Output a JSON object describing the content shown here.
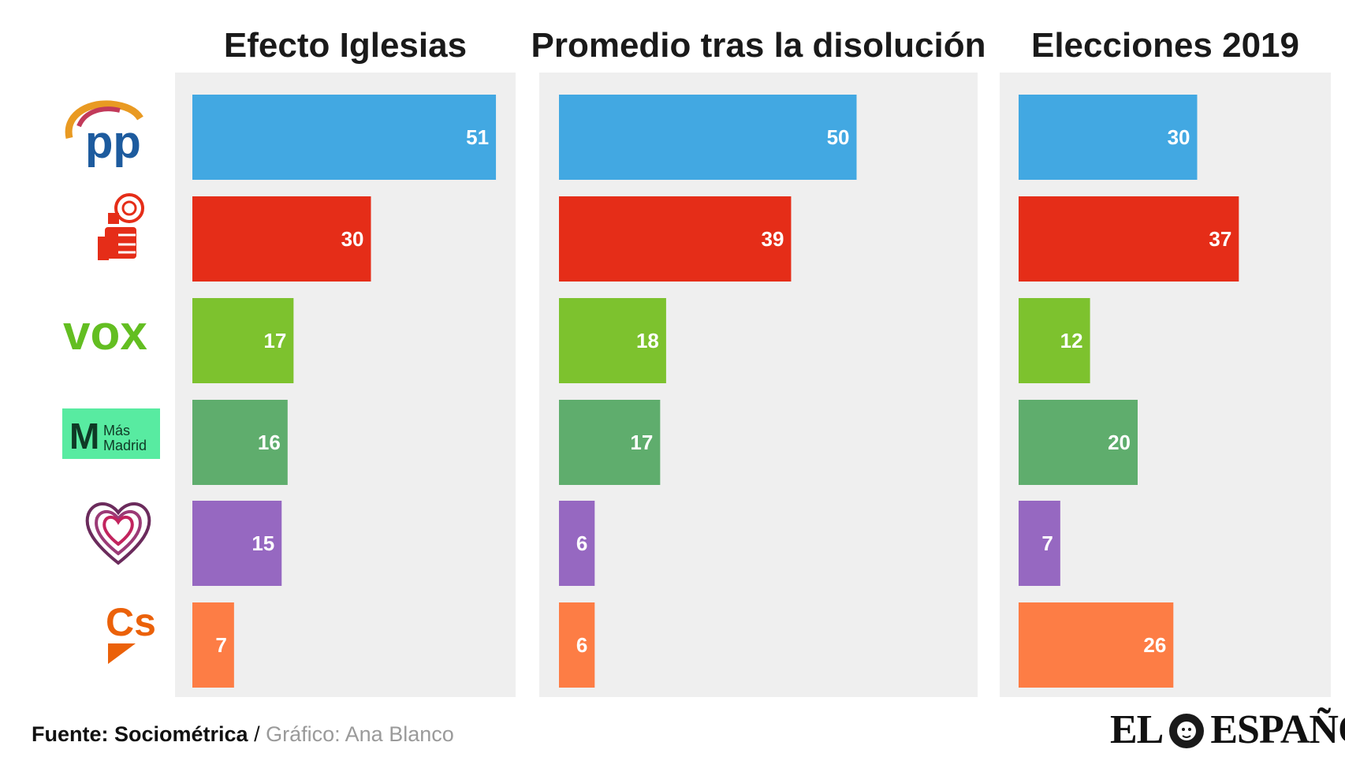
{
  "chart_data": {
    "type": "bar",
    "orientation": "horizontal",
    "categories": [
      "PP",
      "PSOE",
      "VOX",
      "Más Madrid",
      "Podemos",
      "Cs"
    ],
    "category_colors": [
      "#42a8e2",
      "#e52d18",
      "#7dc22e",
      "#5fad6d",
      "#9668c1",
      "#fd7d45"
    ],
    "panels": [
      {
        "title": "Efecto Iglesias",
        "values": [
          51,
          30,
          17,
          16,
          15,
          7
        ]
      },
      {
        "title": "Promedio tras la disolución",
        "values": [
          50,
          39,
          18,
          17,
          6,
          6
        ]
      },
      {
        "title": "Elecciones 2019",
        "values": [
          30,
          37,
          12,
          20,
          7,
          26
        ]
      }
    ],
    "panel_background": "#efefef"
  },
  "logos": {
    "pp": {
      "text": "pp"
    },
    "vox": {
      "text": "vox"
    },
    "mas_madrid": {
      "m": "M",
      "line1": "Más",
      "line2": "Madrid",
      "background": "#58eba1"
    },
    "cs": {
      "text": "Cs"
    }
  },
  "footer": {
    "source": "Fuente: Sociométrica",
    "separator": "/",
    "credit": "Gráfico: Ana Blanco"
  },
  "brand": {
    "left": "EL",
    "right": "ESPAÑOL"
  }
}
